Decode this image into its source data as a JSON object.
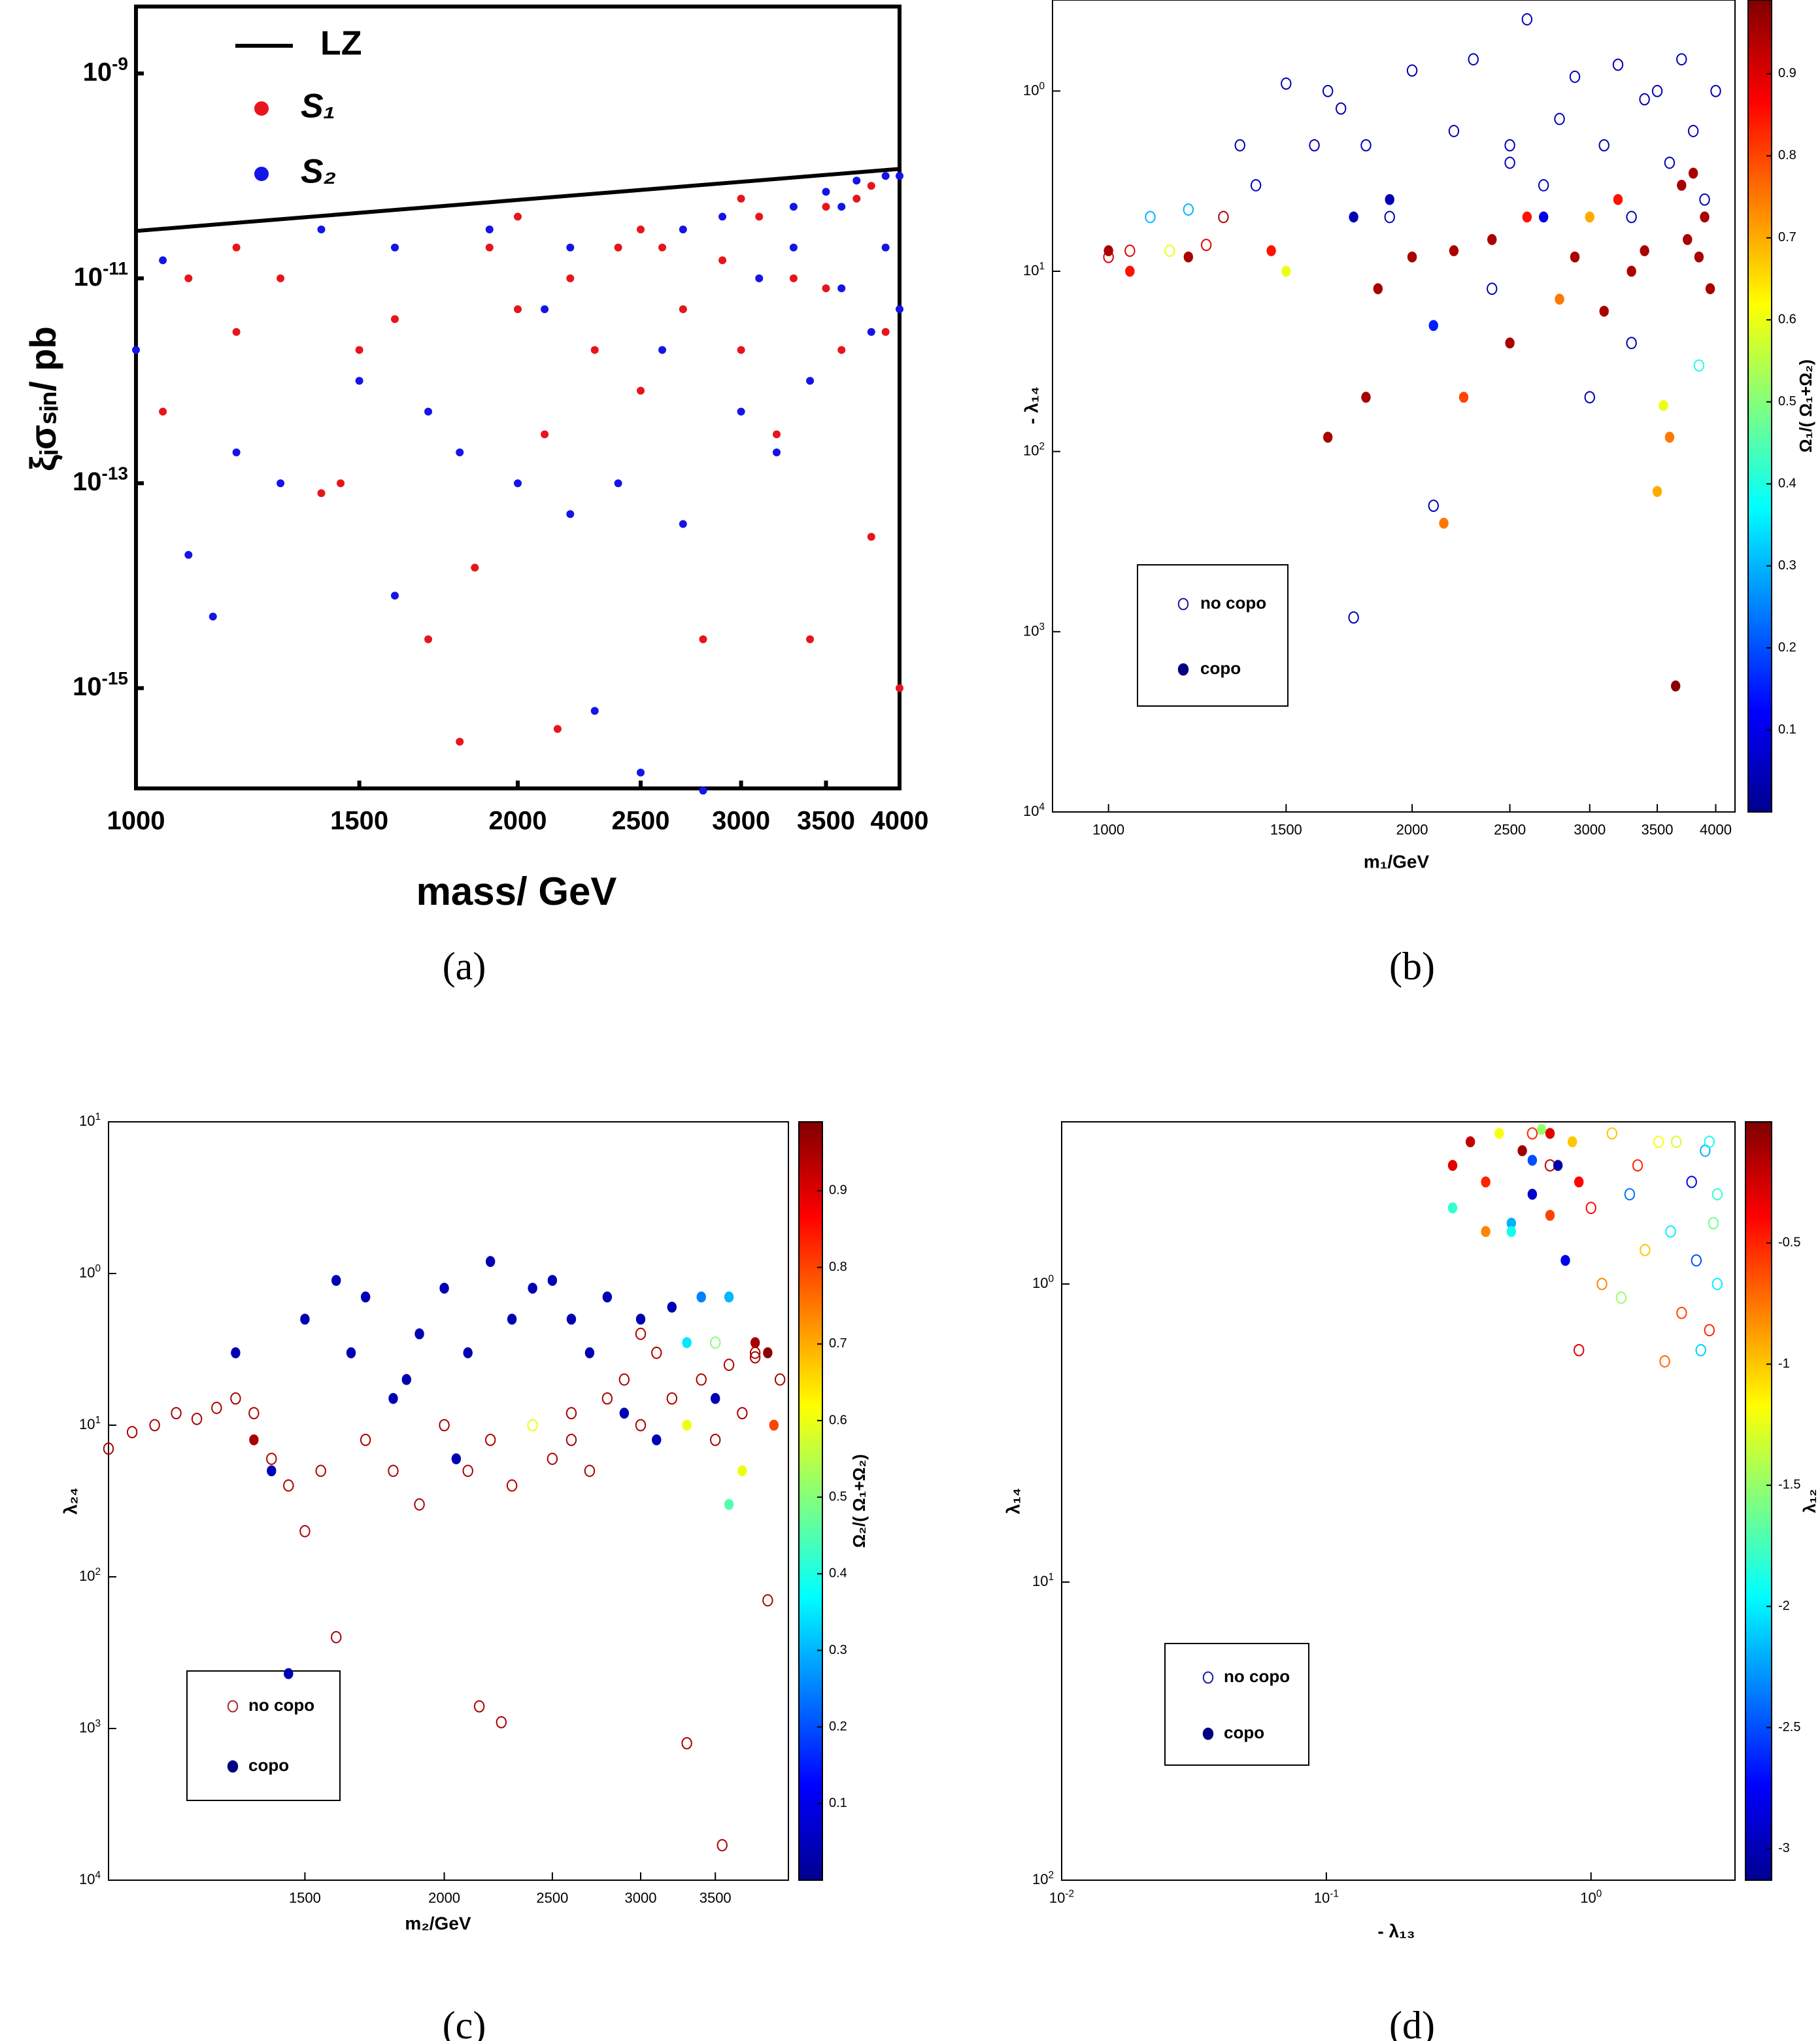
{
  "chart_data": [
    {
      "type": "scatter",
      "caption": "(a)",
      "xlabel": "mass/ GeV",
      "ylabel": "ξᵢσₛᵢₙ/ pb",
      "xscale": "log",
      "yscale": "log",
      "xlim": [
        1000,
        4000
      ],
      "ylim": [
        1.05e-16,
        4.5e-09
      ],
      "xticks": [
        1000,
        1500,
        2000,
        2500,
        3000,
        3500,
        4000
      ],
      "yticks": [
        {
          "value": 1e-09,
          "label": "10^-9"
        },
        {
          "value": 1e-11,
          "label": "10^-11"
        },
        {
          "value": 1e-13,
          "label": "10^-13"
        },
        {
          "value": 1e-15,
          "label": "10^-15"
        }
      ],
      "series": [
        {
          "name": "LZ",
          "marker": "line",
          "color": "#000000",
          "x": [
            1000,
            4000
          ],
          "values": [
            2.9e-11,
            1.17e-10
          ]
        },
        {
          "name": "S₁",
          "marker": "filled",
          "color": "#e8141c",
          "x": [
            1050,
            1100,
            1200,
            1300,
            1400,
            1450,
            1500,
            1600,
            1700,
            1800,
            1850,
            1900,
            2000,
            2100,
            2150,
            2200,
            2300,
            2400,
            2500,
            2600,
            2700,
            2800,
            2900,
            3000,
            3100,
            3200,
            3300,
            3400,
            3500,
            3600,
            3700,
            3800,
            3900,
            4000,
            2000,
            2500,
            3000,
            3500,
            3800,
            1200
          ],
          "values": [
            5e-13,
            1e-11,
            3e-12,
            1e-11,
            8e-14,
            1e-13,
            2e-12,
            4e-12,
            3e-15,
            3e-16,
            1.5e-14,
            2e-11,
            5e-12,
            3e-13,
            4e-16,
            1e-11,
            2e-12,
            2e-11,
            8e-13,
            2e-11,
            5e-12,
            3e-15,
            1.5e-11,
            2e-12,
            4e-11,
            3e-13,
            1e-11,
            3e-15,
            5e-11,
            2e-12,
            6e-11,
            3e-14,
            3e-12,
            1e-15,
            4e-11,
            3e-11,
            6e-11,
            8e-12,
            8e-11,
            2e-11
          ]
        },
        {
          "name": "S₂",
          "marker": "filled",
          "color": "#1414e8",
          "x": [
            1000,
            1050,
            1100,
            1150,
            1200,
            1300,
            1400,
            1500,
            1600,
            1700,
            1800,
            1900,
            2000,
            2100,
            2200,
            2300,
            2400,
            2500,
            2600,
            2700,
            2800,
            2900,
            3000,
            3100,
            3200,
            3300,
            3400,
            3500,
            3600,
            3700,
            3800,
            3900,
            4000,
            3600,
            3300,
            2700,
            2200,
            1600,
            3900,
            4000
          ],
          "values": [
            2e-12,
            1.5e-11,
            2e-14,
            5e-15,
            2e-13,
            1e-13,
            3e-11,
            1e-12,
            8e-15,
            5e-13,
            2e-13,
            3e-11,
            1e-13,
            5e-12,
            5e-14,
            6e-16,
            1e-13,
            1.5e-16,
            2e-12,
            4e-14,
            1e-16,
            4e-11,
            5e-13,
            1e-11,
            2e-13,
            5e-11,
            1e-12,
            7e-11,
            8e-12,
            9e-11,
            3e-12,
            1e-10,
            5e-12,
            5e-11,
            2e-11,
            3e-11,
            2e-11,
            2e-11,
            2e-11,
            1e-10
          ]
        }
      ]
    },
    {
      "type": "scatter",
      "caption": "(b)",
      "xlabel": "m₁/GeV",
      "ylabel": "- λ₁₄",
      "xscale": "log",
      "yscale": "log",
      "xlim": [
        880,
        4180
      ],
      "ylim": [
        0.0001,
        3.2
      ],
      "xticks": [
        1000,
        1500,
        2000,
        2500,
        3000,
        3500,
        4000
      ],
      "yticks": [
        {
          "value": 1,
          "label": "10^0"
        },
        {
          "value": 0.1,
          "label": "10^1"
        },
        {
          "value": 0.01,
          "label": "10^2"
        },
        {
          "value": 0.001,
          "label": "10^3"
        },
        {
          "value": 0.0001,
          "label": "10^4"
        }
      ],
      "colorbar": {
        "label": "Ω₁/( Ω₁+Ω₂)",
        "colormap": "jet",
        "lim": [
          0,
          0.99
        ],
        "ticks": [
          0.1,
          0.2,
          0.3,
          0.4,
          0.5,
          0.6,
          0.7,
          0.8,
          0.9
        ]
      },
      "series": [
        {
          "name": "no copo",
          "marker": "open",
          "color": "#1a1a99",
          "x": [
            1000,
            1050,
            1100,
            1150,
            1200,
            1250,
            1300,
            1350,
            1400,
            1500,
            1600,
            1650,
            1700,
            1750,
            1800,
            1900,
            2000,
            2100,
            2200,
            2300,
            2400,
            2500,
            2600,
            2700,
            2800,
            2900,
            3000,
            3100,
            3200,
            3300,
            3400,
            3500,
            3600,
            3700,
            3800,
            3900,
            4000,
            3300,
            2500,
            3850
          ],
          "values": [
            0.12,
            0.13,
            0.2,
            0.13,
            0.22,
            0.14,
            0.2,
            0.5,
            0.3,
            1.1,
            0.5,
            1.0,
            0.8,
            0.0012,
            0.5,
            0.2,
            1.3,
            0.005,
            0.6,
            1.5,
            0.08,
            0.4,
            2.5,
            0.3,
            0.7,
            1.2,
            0.02,
            0.5,
            1.4,
            0.2,
            0.9,
            1.0,
            0.4,
            1.5,
            0.6,
            0.25,
            1.0,
            0.04,
            0.5,
            0.03
          ],
          "c": [
            0.9,
            0.9,
            0.3,
            0.6,
            0.3,
            0.9,
            0.95,
            0.05,
            0.05,
            0.05,
            0.05,
            0.05,
            0.05,
            0.05,
            0.05,
            0.05,
            0.05,
            0.05,
            0.05,
            0.05,
            0.05,
            0.05,
            0.05,
            0.05,
            0.05,
            0.05,
            0.05,
            0.05,
            0.05,
            0.05,
            0.05,
            0.05,
            0.05,
            0.05,
            0.05,
            0.05,
            0.05,
            0.05,
            0.05,
            0.4
          ]
        },
        {
          "name": "copo",
          "marker": "filled",
          "color": "#000080",
          "x": [
            1000,
            1050,
            1200,
            1450,
            1500,
            1650,
            1750,
            1800,
            1850,
            1900,
            2000,
            2100,
            2150,
            2200,
            2250,
            2400,
            2500,
            2600,
            2700,
            2800,
            2900,
            3000,
            3100,
            3200,
            3300,
            3400,
            3500,
            3550,
            3600,
            3650,
            3700,
            3750,
            3800,
            3900,
            3950,
            3850
          ],
          "values": [
            0.13,
            0.1,
            0.12,
            0.13,
            0.1,
            0.012,
            0.2,
            0.02,
            0.08,
            0.25,
            0.12,
            0.05,
            0.004,
            0.13,
            0.02,
            0.15,
            0.04,
            0.2,
            0.2,
            0.07,
            0.12,
            0.2,
            0.06,
            0.25,
            0.1,
            0.13,
            0.006,
            0.018,
            0.012,
            0.0005,
            0.3,
            0.15,
            0.35,
            0.2,
            0.08,
            0.12
          ],
          "c": [
            0.95,
            0.85,
            0.95,
            0.85,
            0.6,
            0.95,
            0.05,
            0.95,
            0.95,
            0.05,
            0.95,
            0.15,
            0.75,
            0.95,
            0.8,
            0.95,
            0.95,
            0.85,
            0.1,
            0.75,
            0.95,
            0.7,
            0.95,
            0.85,
            0.95,
            0.95,
            0.7,
            0.6,
            0.75,
            0.98,
            0.95,
            0.95,
            0.95,
            0.95,
            0.95,
            0.95
          ]
        }
      ]
    },
    {
      "type": "scatter",
      "caption": "(c)",
      "xlabel": "m₂/GeV",
      "ylabel": "λ₂₄",
      "xscale": "log",
      "yscale": "log",
      "xlim": [
        1000,
        4070
      ],
      "ylim": [
        0.0001,
        10
      ],
      "xticks": [
        1500,
        2000,
        2500,
        3000,
        3500
      ],
      "yticks": [
        {
          "value": 10,
          "label": "10^1"
        },
        {
          "value": 1,
          "label": "10^0"
        },
        {
          "value": 0.1,
          "label": "10^1"
        },
        {
          "value": 0.01,
          "label": "10^2"
        },
        {
          "value": 0.001,
          "label": "10^3"
        },
        {
          "value": 0.0001,
          "label": "10^4"
        }
      ],
      "colorbar": {
        "label": "Ω₂/( Ω₁+Ω₂)",
        "colormap": "jet",
        "lim": [
          0,
          0.99
        ],
        "ticks": [
          0.1,
          0.2,
          0.3,
          0.4,
          0.5,
          0.6,
          0.7,
          0.8,
          0.9
        ]
      },
      "series": [
        {
          "name": "no copo",
          "marker": "open",
          "color": "#a52a2a",
          "x": [
            1000,
            1050,
            1100,
            1150,
            1200,
            1250,
            1300,
            1350,
            1400,
            1450,
            1500,
            1550,
            1600,
            1700,
            1800,
            1900,
            2000,
            2100,
            2150,
            2200,
            2250,
            2300,
            2400,
            2500,
            2600,
            2700,
            2800,
            2900,
            3000,
            3100,
            3200,
            3300,
            3400,
            3500,
            3550,
            3600,
            3700,
            3800,
            3900,
            4000,
            3000,
            3500,
            3800,
            2600
          ],
          "values": [
            0.07,
            0.09,
            0.1,
            0.12,
            0.11,
            0.13,
            0.15,
            0.12,
            0.06,
            0.04,
            0.02,
            0.05,
            0.004,
            0.08,
            0.05,
            0.03,
            0.1,
            0.05,
            0.0014,
            0.08,
            0.0011,
            0.04,
            0.1,
            0.06,
            0.12,
            0.05,
            0.15,
            0.2,
            0.1,
            0.3,
            0.15,
            0.0008,
            0.2,
            0.08,
            0.00017,
            0.25,
            0.12,
            0.3,
            0.007,
            0.2,
            0.4,
            0.35,
            0.28,
            0.08
          ],
          "c": [
            0.95,
            0.95,
            0.95,
            0.95,
            0.95,
            0.95,
            0.95,
            0.95,
            0.95,
            0.95,
            0.95,
            0.95,
            0.95,
            0.95,
            0.95,
            0.95,
            0.95,
            0.95,
            0.95,
            0.95,
            0.95,
            0.95,
            0.6,
            0.95,
            0.95,
            0.95,
            0.95,
            0.95,
            0.95,
            0.95,
            0.95,
            0.95,
            0.95,
            0.95,
            0.95,
            0.95,
            0.95,
            0.95,
            0.95,
            0.95,
            0.95,
            0.5,
            0.95,
            0.95
          ]
        },
        {
          "name": "copo",
          "marker": "filled",
          "color": "#000080",
          "x": [
            1300,
            1350,
            1400,
            1450,
            1500,
            1600,
            1650,
            1700,
            1800,
            1850,
            1900,
            2000,
            2050,
            2100,
            2200,
            2300,
            2400,
            2500,
            2600,
            2700,
            2800,
            2900,
            3000,
            3100,
            3200,
            3300,
            3400,
            3500,
            3600,
            3700,
            3800,
            3900,
            3950,
            3300,
            3600
          ],
          "values": [
            0.3,
            0.08,
            0.05,
            0.0023,
            0.5,
            0.9,
            0.3,
            0.7,
            0.15,
            0.2,
            0.4,
            0.8,
            0.06,
            0.3,
            1.2,
            0.5,
            0.8,
            0.9,
            0.5,
            0.3,
            0.7,
            0.12,
            0.5,
            0.08,
            0.6,
            0.1,
            0.7,
            0.15,
            0.7,
            0.05,
            0.35,
            0.3,
            0.1,
            0.35,
            0.03
          ],
          "c": [
            0.05,
            0.95,
            0.05,
            0.05,
            0.05,
            0.05,
            0.05,
            0.05,
            0.05,
            0.05,
            0.05,
            0.05,
            0.05,
            0.05,
            0.05,
            0.05,
            0.05,
            0.05,
            0.05,
            0.05,
            0.05,
            0.05,
            0.05,
            0.05,
            0.05,
            0.6,
            0.25,
            0.05,
            0.3,
            0.6,
            0.95,
            0.98,
            0.8,
            0.35,
            0.45
          ]
        }
      ]
    },
    {
      "type": "scatter",
      "caption": "(d)",
      "xlabel": "- λ₁₃",
      "ylabel": "λ₁₄",
      "xscale": "log",
      "yscale": "log",
      "xlim": [
        0.01,
        3.5
      ],
      "ylim": [
        0.01,
        3.5
      ],
      "xticks": [
        {
          "value": 0.01,
          "label": "10^-2"
        },
        {
          "value": 0.1,
          "label": "10^-1"
        },
        {
          "value": 1,
          "label": "10^0"
        }
      ],
      "yticks": [
        {
          "value": 1,
          "label": "10^0"
        },
        {
          "value": 0.1,
          "label": "10^1"
        },
        {
          "value": 0.01,
          "label": "10^2"
        }
      ],
      "colorbar": {
        "label": "λ₁₂",
        "colormap": "jet",
        "lim": [
          -3.13,
          0
        ],
        "ticks": [
          -3,
          -2.5,
          -2,
          -1.5,
          -1,
          -0.5
        ]
      },
      "series": [
        {
          "name": "no copo",
          "marker": "open",
          "color": "#1a1a99",
          "x": [
            1.2,
            1.5,
            2.0,
            2.5,
            3.0,
            2.8,
            1.8,
            1.0,
            0.9,
            1.3,
            2.2,
            2.7,
            3.0,
            0.7,
            1.6,
            2.4,
            2.9,
            1.1,
            1.9,
            2.6,
            1.4,
            2.1,
            0.6,
            2.8
          ],
          "values": [
            3.2,
            2.5,
            1.5,
            1.2,
            2.0,
            0.7,
            3.0,
            1.8,
            0.6,
            0.9,
            0.8,
            2.8,
            1.0,
            2.5,
            1.3,
            2.2,
            1.6,
            1.0,
            0.55,
            0.6,
            2.0,
            3.0,
            3.2,
            3.0
          ],
          "c": [
            -1,
            -0.5,
            -2,
            -2.5,
            -1.8,
            -0.5,
            -1.2,
            -0.4,
            -0.3,
            -1.5,
            -0.6,
            -2.2,
            -2.0,
            -0.2,
            -1.0,
            -2.8,
            -1.6,
            -0.8,
            -0.7,
            -2.1,
            -2.4,
            -1.3,
            -0.5,
            -1.9
          ]
        },
        {
          "name": "copo",
          "marker": "filled",
          "color": "#000080",
          "x": [
            0.3,
            0.35,
            0.3,
            0.4,
            0.45,
            0.5,
            0.55,
            0.6,
            0.65,
            0.7,
            0.75,
            0.8,
            0.85,
            0.9,
            0.5,
            0.4,
            0.7,
            0.6
          ],
          "values": [
            2.5,
            3.0,
            1.8,
            2.2,
            3.2,
            1.6,
            2.8,
            2.0,
            3.3,
            1.7,
            2.5,
            1.2,
            3.0,
            2.2,
            1.5,
            1.5,
            3.2,
            2.6
          ],
          "c": [
            -0.3,
            -0.2,
            -1.8,
            -0.5,
            -1.2,
            -2.2,
            -0.1,
            -2.9,
            -1.5,
            -0.6,
            -3.0,
            -2.8,
            -1.0,
            -0.4,
            -1.9,
            -0.8,
            -0.3,
            -2.5
          ]
        }
      ]
    }
  ]
}
